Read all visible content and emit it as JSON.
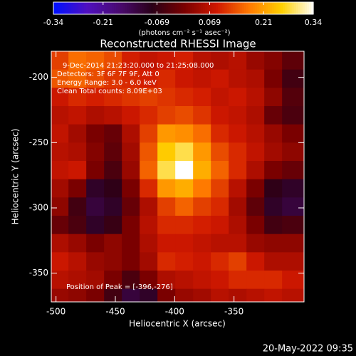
{
  "chart_data": {
    "type": "image",
    "title": "Reconstructed RHESSI Image",
    "xlabel": "Heliocentric X (arcsec)",
    "ylabel": "Heliocentric Y (arcsec)",
    "xlim": [
      -504,
      -291
    ],
    "ylim": [
      -372,
      -180
    ],
    "xticks": [
      -500,
      -450,
      -400,
      -350
    ],
    "yticks": [
      -200,
      -250,
      -300,
      -350
    ],
    "colorbar_lim": [
      -0.34,
      0.34
    ],
    "colorbar_ticks": [
      -0.34,
      -0.21,
      -0.069,
      0.069,
      0.21,
      0.34
    ],
    "colorbar_label": "(photons cm⁻² s⁻¹ asec⁻²)",
    "colormap": [
      "#0010ff",
      "#5010c0",
      "#4a0a70",
      "#2a0018",
      "#7a0000",
      "#d01800",
      "#ff7a00",
      "#ffd000",
      "#ffffff"
    ],
    "annotations": [
      "9-Dec-2014 21:23:20.000 to 21:25:08.000",
      "Detectors: 3F 6F 7F 9F, Att 0",
      "Energy Range: 3.0 - 6.0 keV",
      "Clean     Total counts: 8.09E+03"
    ],
    "peak_label": "Position of Peak = [-396,-276]",
    "footer": "20-May-2022 09:35",
    "x": [
      -497,
      -482,
      -467,
      -452,
      -437,
      -422,
      -407,
      -392,
      -377,
      -362,
      -347,
      -332,
      -317,
      -302
    ],
    "y": [
      -187,
      -201,
      -215,
      -229,
      -243,
      -257,
      -271,
      -285,
      -299,
      -313,
      -327,
      -341,
      -355,
      -369
    ],
    "z": [
      [
        0.12,
        0.16,
        0.15,
        0.13,
        0.09,
        0.07,
        0.08,
        0.09,
        0.06,
        0.05,
        0.06,
        0.03,
        0.01,
        -0.03
      ],
      [
        0.14,
        0.15,
        0.13,
        0.11,
        0.1,
        0.09,
        0.1,
        0.08,
        0.07,
        0.08,
        0.06,
        0.05,
        0.0,
        -0.06
      ],
      [
        0.08,
        0.1,
        0.09,
        0.1,
        0.11,
        0.12,
        0.11,
        0.1,
        0.09,
        0.07,
        0.08,
        0.06,
        0.02,
        -0.04
      ],
      [
        0.06,
        0.07,
        0.05,
        0.06,
        0.08,
        0.1,
        0.12,
        0.13,
        0.11,
        0.08,
        0.07,
        0.05,
        -0.02,
        -0.05
      ],
      [
        0.07,
        0.04,
        0.0,
        -0.02,
        0.05,
        0.12,
        0.2,
        0.19,
        0.16,
        0.1,
        0.08,
        0.06,
        0.03,
        0.0
      ],
      [
        0.06,
        0.05,
        0.01,
        -0.03,
        0.04,
        0.14,
        0.25,
        0.28,
        0.2,
        0.13,
        0.1,
        0.07,
        0.04,
        0.02
      ],
      [
        0.07,
        0.08,
        0.0,
        -0.05,
        0.03,
        0.15,
        0.28,
        0.34,
        0.22,
        0.15,
        0.1,
        0.05,
        0.0,
        -0.02
      ],
      [
        0.04,
        0.0,
        -0.1,
        -0.08,
        0.0,
        0.1,
        0.2,
        0.22,
        0.17,
        0.12,
        0.06,
        0.0,
        -0.08,
        -0.1
      ],
      [
        0.02,
        -0.06,
        -0.12,
        -0.1,
        -0.02,
        0.05,
        0.12,
        0.15,
        0.12,
        0.1,
        0.04,
        -0.03,
        -0.1,
        -0.12
      ],
      [
        -0.02,
        -0.05,
        -0.1,
        -0.07,
        0.0,
        0.06,
        0.1,
        0.1,
        0.09,
        0.08,
        0.05,
        0.0,
        -0.06,
        -0.05
      ],
      [
        0.05,
        0.03,
        0.0,
        0.02,
        0.0,
        0.05,
        0.08,
        0.08,
        0.07,
        0.06,
        0.06,
        0.03,
        0.02,
        0.02
      ],
      [
        0.08,
        0.06,
        0.03,
        0.02,
        0.0,
        0.04,
        0.1,
        0.09,
        0.08,
        0.1,
        0.12,
        0.08,
        0.05,
        0.05
      ],
      [
        0.06,
        0.05,
        0.04,
        0.0,
        -0.05,
        0.0,
        0.05,
        0.06,
        0.07,
        0.08,
        0.1,
        0.1,
        0.1,
        0.08
      ],
      [
        0.03,
        0.02,
        0.0,
        -0.06,
        -0.12,
        -0.1,
        0.0,
        0.03,
        0.04,
        0.06,
        0.05,
        0.06,
        0.07,
        0.06
      ]
    ]
  }
}
